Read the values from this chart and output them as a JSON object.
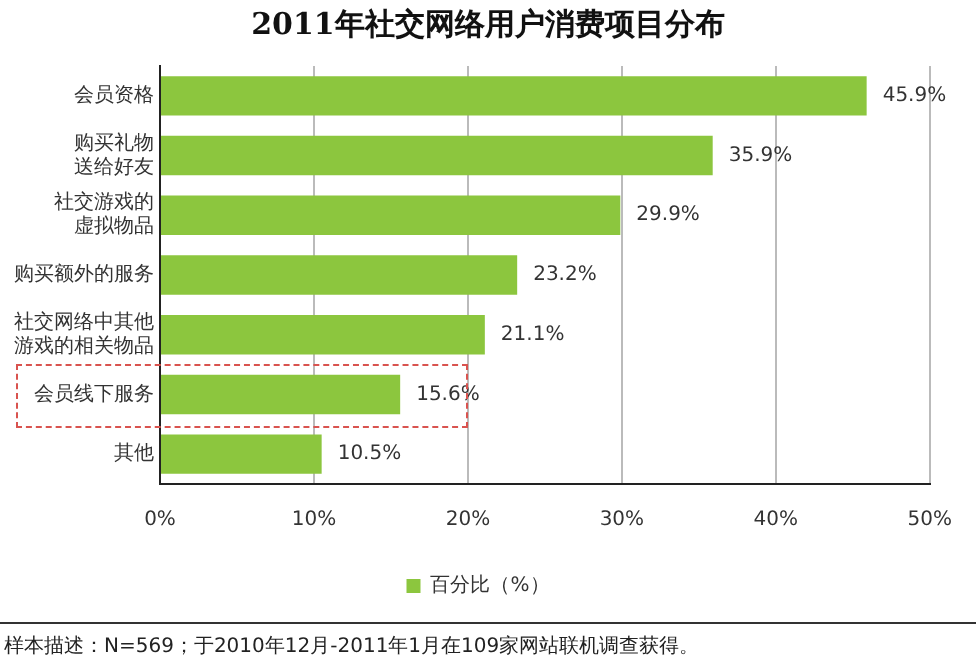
{
  "chart_data": {
    "type": "bar",
    "orientation": "horizontal",
    "title": "2011年社交网络用户消费项目分布",
    "categories": [
      "会员资格",
      "购买礼物送给好友",
      "社交游戏的虚拟物品",
      "购买额外的服务",
      "社交网络中其他游戏的相关物品",
      "会员线下服务",
      "其他"
    ],
    "series": [
      {
        "name": "百分比（%）",
        "color": "#8cc63e",
        "values": [
          45.9,
          35.9,
          29.9,
          23.2,
          21.1,
          15.6,
          10.5
        ],
        "value_labels": [
          "45.9%",
          "35.9%",
          "29.9%",
          "23.2%",
          "21.1%",
          "15.6%",
          "10.5%"
        ]
      }
    ],
    "xlim": [
      0,
      50
    ],
    "xticks": [
      {
        "value": 0,
        "label": "0%"
      },
      {
        "value": 10,
        "label": "10%"
      },
      {
        "value": 20,
        "label": "20%"
      },
      {
        "value": 30,
        "label": "30%"
      },
      {
        "value": 40,
        "label": "40%"
      },
      {
        "value": 50,
        "label": "50%"
      }
    ],
    "grid": "x",
    "legend": "bottom",
    "annotations": [
      "样本描述：N=569；于2010年12月-2011年1月在109家网站联机调查获得。"
    ]
  }
}
